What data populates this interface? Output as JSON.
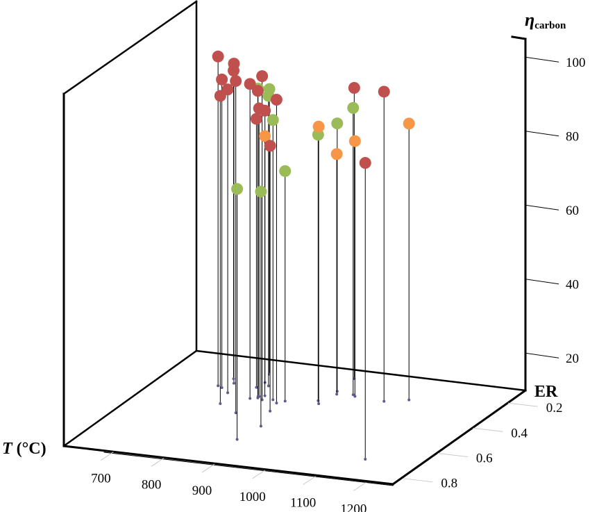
{
  "chart_data": {
    "type": "scatter",
    "dimensions": 3,
    "title": "",
    "xlabel": {
      "symbol": "T",
      "unit": " (°C)"
    },
    "ylabel": "ER",
    "zlabel": {
      "symbol": "η",
      "subscript": "carbon"
    },
    "xlim": [
      602,
      1253
    ],
    "ylim": [
      0.1,
      0.857
    ],
    "zlim": [
      9.9,
      105.7
    ],
    "x_ticks": [
      "700",
      "800",
      "900",
      "1000",
      "1100",
      "1200"
    ],
    "x_tick_values": [
      700,
      800,
      900,
      1000,
      1100,
      1200
    ],
    "y_ticks": [
      "0.2",
      "0.4",
      "0.6",
      "0.8"
    ],
    "y_tick_values": [
      0.2,
      0.4,
      0.6,
      0.8
    ],
    "z_ticks": [
      "20",
      "40",
      "60",
      "80",
      "100"
    ],
    "z_tick_values": [
      20,
      40,
      60,
      80,
      100
    ],
    "grid": false,
    "base_marker_color": "#5b5b8c",
    "series": [
      {
        "color": "#c0504d",
        "points": [
          [
            721,
            0.32,
            98.9
          ],
          [
            742,
            0.29,
            96.3
          ],
          [
            731,
            0.26,
            93.2
          ],
          [
            732,
            0.33,
            93.2
          ],
          [
            815,
            0.49,
            99.6
          ],
          [
            754,
            0.36,
            91.9
          ],
          [
            767,
            0.44,
            93.1
          ],
          [
            805,
            0.38,
            94.9
          ],
          [
            829,
            0.38,
            97.4
          ],
          [
            817,
            0.37,
            92.9
          ],
          [
            861,
            0.39,
            91.9
          ],
          [
            816,
            0.36,
            87.8
          ],
          [
            793,
            0.26,
            83.4
          ],
          [
            790,
            0.3,
            82.5
          ],
          [
            869,
            0.45,
            81.6
          ],
          [
            935,
            0.16,
            88.5
          ],
          [
            1144,
            0.7,
            90.0
          ],
          [
            1039,
            0.29,
            93.6
          ]
        ]
      },
      {
        "color": "#9bbb59",
        "points": [
          [
            814,
            0.36,
            93.1
          ],
          [
            781,
            0.2,
            87.0
          ],
          [
            807,
            0.28,
            88.3
          ],
          [
            847,
            0.37,
            85.5
          ],
          [
            871,
            0.37,
            72.1
          ],
          [
            880,
            0.67,
            77.6
          ],
          [
            889,
            0.56,
            73.3
          ],
          [
            926,
            0.34,
            81.8
          ],
          [
            936,
            0.26,
            82.3
          ],
          [
            971,
            0.27,
            87.4
          ]
        ]
      },
      {
        "color": "#f79646",
        "points": [
          [
            824,
            0.35,
            80.1
          ],
          [
            934,
            0.36,
            84.8
          ],
          [
            942,
            0.28,
            74.8
          ],
          [
            978,
            0.28,
            78.9
          ],
          [
            1078,
            0.26,
            84.6
          ]
        ]
      }
    ]
  }
}
